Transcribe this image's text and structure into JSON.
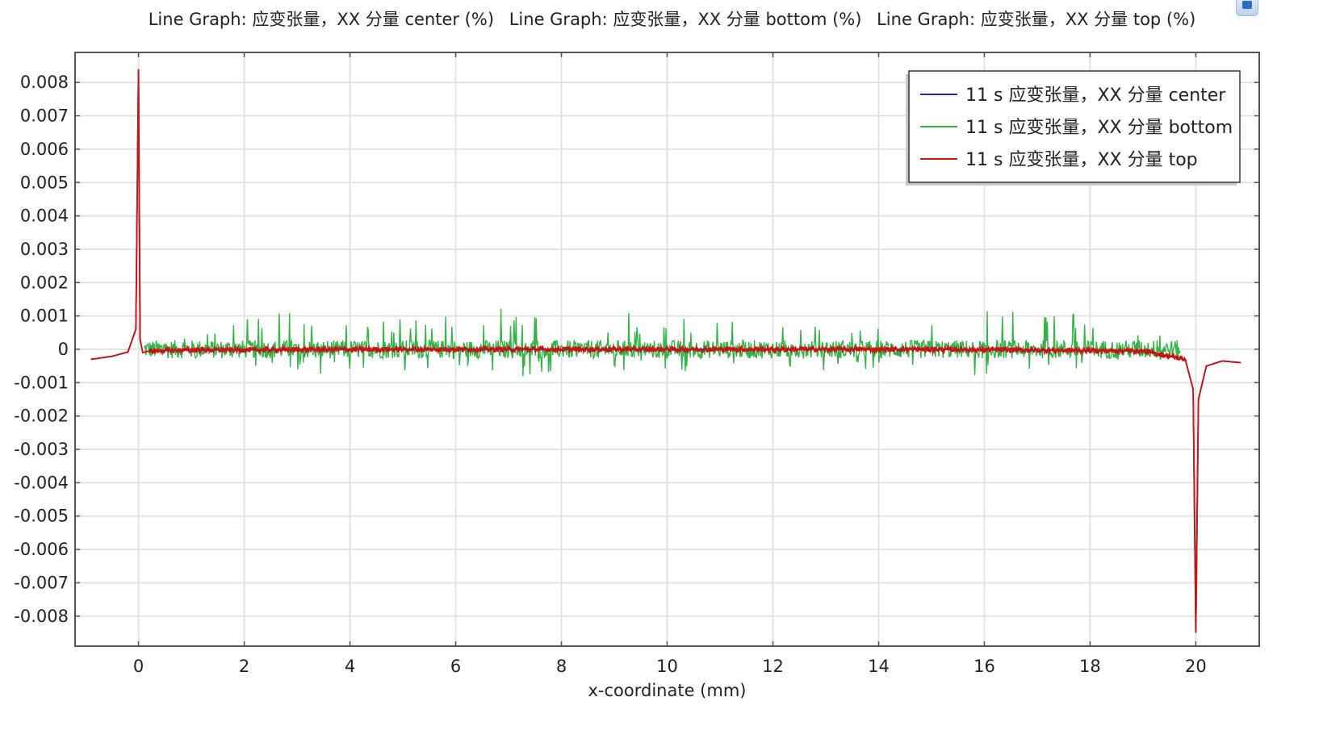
{
  "title_parts": [
    "Line Graph: 应变张量，XX 分量 center (%)",
    "Line Graph: 应变张量，XX 分量 bottom (%)",
    "Line Graph: 应变张量，XX 分量 top (%)"
  ],
  "chart_data": {
    "type": "line",
    "title": "Line Graph: 应变张量，XX 分量 center (%)  Line Graph: 应变张量，XX 分量 bottom (%)  Line Graph: 应变张量，XX 分量 top (%)",
    "xlabel": "x-coordinate (mm)",
    "ylabel": "",
    "xlim": [
      -1.2,
      21.2
    ],
    "ylim": [
      -0.0089,
      0.0089
    ],
    "x_ticks": [
      0,
      2,
      4,
      6,
      8,
      10,
      12,
      14,
      16,
      18,
      20
    ],
    "y_ticks": [
      0.008,
      0.007,
      0.006,
      0.005,
      0.004,
      0.003,
      0.002,
      0.001,
      0,
      -0.001,
      -0.002,
      -0.003,
      -0.004,
      -0.005,
      -0.006,
      -0.007,
      -0.008
    ],
    "y_tick_labels": [
      "0.008",
      "0.007",
      "0.006",
      "0.005",
      "0.004",
      "0.003",
      "0.002",
      "0.001",
      "0",
      "-0.001",
      "-0.002",
      "-0.003",
      "-0.004",
      "-0.005",
      "-0.006",
      "-0.007",
      "-0.008"
    ],
    "grid": true,
    "legend_position": "top-right",
    "series": [
      {
        "name": "11 s 应变张量，XX 分量 center",
        "color": "#1f2f9a",
        "x": [
          -0.9,
          -0.5,
          -0.2,
          -0.05,
          0,
          0.03,
          0.08,
          0.2,
          1,
          5,
          10,
          15,
          19,
          19.8,
          19.95,
          20,
          20.05,
          20.2,
          20.5,
          20.85
        ],
        "y": [
          -0.0003,
          -0.00021,
          -8e-05,
          0.0006,
          0.0084,
          0.0003,
          -0.0001,
          -5e-05,
          -2e-05,
          0,
          0,
          0,
          -5e-05,
          -0.0003,
          -0.0012,
          -0.0085,
          -0.0015,
          -0.0005,
          -0.00035,
          -0.0004
        ]
      },
      {
        "name": "11 s 应变张量，XX 分量 bottom",
        "color": "#33b346",
        "x": [
          0.1,
          1.0,
          2.8,
          4.0,
          6.0,
          6.9,
          8.0,
          9.2,
          10.0,
          12.0,
          14.0,
          15.0,
          16.6,
          16.8,
          18.0,
          19.0,
          19.7
        ],
        "y": [
          0,
          0.0005,
          0.0012,
          0.0009,
          0.001,
          0.0013,
          0.0009,
          -0.0014,
          0.001,
          0.0008,
          0.001,
          0.0011,
          0.0012,
          0.0015,
          0.001,
          0.0005,
          0.0004
        ],
        "noise_amplitude": 0.0005
      },
      {
        "name": "11 s 应变张量，XX 分量 top",
        "color": "#cc1111",
        "x": [
          -0.9,
          -0.5,
          -0.2,
          -0.05,
          0,
          0.03,
          0.08,
          0.2,
          1,
          5,
          10,
          15,
          19,
          19.8,
          19.95,
          20,
          20.05,
          20.2,
          20.5,
          20.85
        ],
        "y": [
          -0.0003,
          -0.00021,
          -8e-05,
          0.0006,
          0.0084,
          0.0003,
          -0.0001,
          -5e-05,
          -2e-05,
          0,
          0,
          0,
          -5e-05,
          -0.0003,
          -0.0012,
          -0.0085,
          -0.0015,
          -0.0005,
          -0.00035,
          -0.0004
        ],
        "noise_amplitude": 8e-05
      }
    ]
  }
}
